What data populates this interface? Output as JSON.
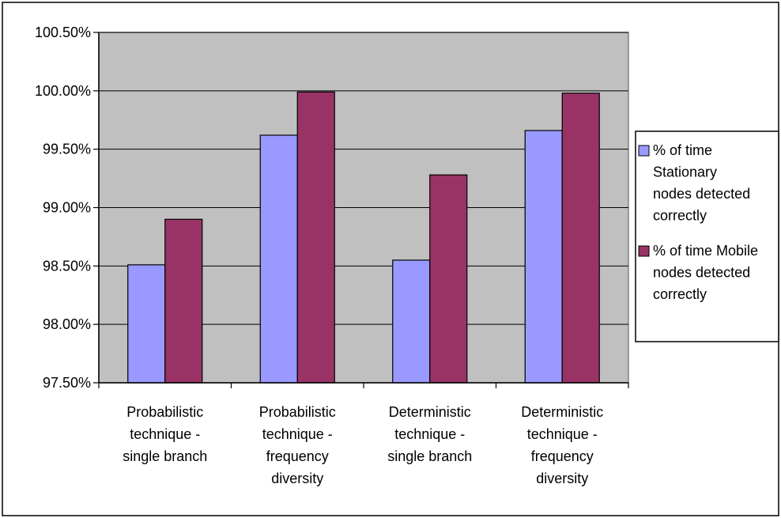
{
  "chart_data": {
    "type": "bar",
    "title": "",
    "xlabel": "",
    "ylabel": "",
    "categories": [
      [
        "Probabilistic",
        "technique -",
        "single branch"
      ],
      [
        "Probabilistic",
        "technique -",
        "frequency",
        "diversity"
      ],
      [
        "Deterministic",
        "technique -",
        "single branch"
      ],
      [
        "Deterministic",
        "technique -",
        "frequency",
        "diversity"
      ]
    ],
    "series": [
      {
        "name": [
          "% of time",
          "Stationary",
          "nodes detected",
          "correctly"
        ],
        "color": "#9999ff",
        "values": [
          98.51,
          99.62,
          98.55,
          99.66
        ]
      },
      {
        "name": [
          "% of time Mobile",
          "nodes detected",
          "correctly"
        ],
        "color": "#993366",
        "values": [
          98.9,
          99.99,
          99.28,
          99.98
        ]
      }
    ],
    "ylim": [
      97.5,
      100.5
    ],
    "ytick_step": 0.5,
    "ytick_labels": [
      "97.50%",
      "98.00%",
      "98.50%",
      "99.00%",
      "99.50%",
      "100.00%",
      "100.50%"
    ],
    "grid": true,
    "plot_background": "#c0c0c0",
    "legend_position": "right"
  }
}
